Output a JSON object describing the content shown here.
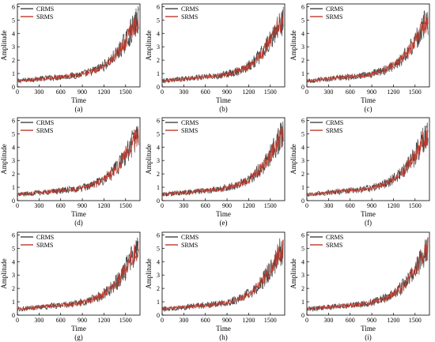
{
  "chart_data": [
    {
      "type": "line",
      "panel_label": "(a)",
      "xlabel": "Time",
      "ylabel": "Amplitude",
      "xlim": [
        0,
        1700
      ],
      "ylim": [
        0,
        6.2
      ],
      "xticks": [
        0,
        300,
        600,
        900,
        1200,
        1500
      ],
      "yticks": [
        0,
        1,
        2,
        3,
        4,
        5,
        6
      ],
      "legend": "top-left",
      "series": [
        {
          "name": "CRMS",
          "color": "#444444"
        },
        {
          "name": "SRMS",
          "color": "#c0392b"
        }
      ],
      "x": [
        0,
        100,
        200,
        300,
        400,
        500,
        600,
        700,
        800,
        900,
        1000,
        1100,
        1200,
        1300,
        1400,
        1500,
        1550,
        1600,
        1650,
        1680
      ],
      "values_trend": [
        0.45,
        0.5,
        0.55,
        0.6,
        0.65,
        0.7,
        0.75,
        0.8,
        0.85,
        0.95,
        1.1,
        1.3,
        1.6,
        2.0,
        2.6,
        3.4,
        3.9,
        4.4,
        4.8,
        5.0
      ]
    },
    {
      "type": "line",
      "panel_label": "(b)",
      "xlabel": "Time",
      "ylabel": "Amplitude",
      "xlim": [
        0,
        1700
      ],
      "ylim": [
        0,
        6.2
      ],
      "xticks": [
        0,
        300,
        600,
        900,
        1200,
        1500
      ],
      "yticks": [
        0,
        1,
        2,
        3,
        4,
        5,
        6
      ],
      "legend": "top-left",
      "series": [
        {
          "name": "CRMS",
          "color": "#444444"
        },
        {
          "name": "SRMS",
          "color": "#c0392b"
        }
      ],
      "x": [
        0,
        100,
        200,
        300,
        400,
        500,
        600,
        700,
        800,
        900,
        1000,
        1100,
        1200,
        1300,
        1400,
        1500,
        1550,
        1600,
        1650,
        1680
      ],
      "values_trend": [
        0.45,
        0.5,
        0.55,
        0.6,
        0.65,
        0.7,
        0.75,
        0.8,
        0.85,
        0.95,
        1.1,
        1.3,
        1.6,
        2.0,
        2.6,
        3.4,
        3.9,
        4.4,
        4.8,
        5.0
      ]
    },
    {
      "type": "line",
      "panel_label": "(c)",
      "xlabel": "Time",
      "ylabel": "Amplitude",
      "xlim": [
        0,
        1700
      ],
      "ylim": [
        0,
        6.2
      ],
      "xticks": [
        0,
        300,
        600,
        900,
        1200,
        1500
      ],
      "yticks": [
        0,
        1,
        2,
        3,
        4,
        5,
        6
      ],
      "legend": "top-left",
      "series": [
        {
          "name": "CRMS",
          "color": "#444444"
        },
        {
          "name": "SRMS",
          "color": "#c0392b"
        }
      ],
      "x": [
        0,
        100,
        200,
        300,
        400,
        500,
        600,
        700,
        800,
        900,
        1000,
        1100,
        1200,
        1300,
        1400,
        1500,
        1550,
        1600,
        1650,
        1680
      ],
      "values_trend": [
        0.45,
        0.5,
        0.55,
        0.6,
        0.65,
        0.7,
        0.75,
        0.8,
        0.85,
        0.95,
        1.1,
        1.3,
        1.6,
        2.0,
        2.6,
        3.4,
        3.9,
        4.4,
        4.8,
        5.0
      ]
    },
    {
      "type": "line",
      "panel_label": "(d)",
      "xlabel": "Time",
      "ylabel": "Amplitude",
      "xlim": [
        0,
        1700
      ],
      "ylim": [
        0,
        6.2
      ],
      "xticks": [
        0,
        300,
        600,
        900,
        1200,
        1500
      ],
      "yticks": [
        0,
        1,
        2,
        3,
        4,
        5,
        6
      ],
      "legend": "top-left",
      "series": [
        {
          "name": "CRMS",
          "color": "#444444"
        },
        {
          "name": "SRMS",
          "color": "#c0392b"
        }
      ],
      "x": [
        0,
        100,
        200,
        300,
        400,
        500,
        600,
        700,
        800,
        900,
        1000,
        1100,
        1200,
        1300,
        1400,
        1500,
        1550,
        1600,
        1650,
        1680
      ],
      "values_trend": [
        0.45,
        0.5,
        0.55,
        0.6,
        0.65,
        0.7,
        0.75,
        0.8,
        0.85,
        0.95,
        1.1,
        1.3,
        1.6,
        2.0,
        2.6,
        3.4,
        3.9,
        4.4,
        4.8,
        5.0
      ]
    },
    {
      "type": "line",
      "panel_label": "(e)",
      "xlabel": "Time",
      "ylabel": "Amplitude",
      "xlim": [
        0,
        1700
      ],
      "ylim": [
        0,
        6.2
      ],
      "xticks": [
        0,
        300,
        600,
        900,
        1200,
        1500
      ],
      "yticks": [
        0,
        1,
        2,
        3,
        4,
        5,
        6
      ],
      "legend": "top-left",
      "series": [
        {
          "name": "CRMS",
          "color": "#444444"
        },
        {
          "name": "SRMS",
          "color": "#c0392b"
        }
      ],
      "x": [
        0,
        100,
        200,
        300,
        400,
        500,
        600,
        700,
        800,
        900,
        1000,
        1100,
        1200,
        1300,
        1400,
        1500,
        1550,
        1600,
        1650,
        1680
      ],
      "values_trend": [
        0.45,
        0.5,
        0.55,
        0.6,
        0.65,
        0.7,
        0.75,
        0.8,
        0.85,
        0.95,
        1.1,
        1.3,
        1.6,
        2.0,
        2.6,
        3.4,
        3.9,
        4.4,
        4.8,
        5.0
      ]
    },
    {
      "type": "line",
      "panel_label": "(f)",
      "xlabel": "Time",
      "ylabel": "Amplitude",
      "xlim": [
        0,
        1700
      ],
      "ylim": [
        0,
        6.2
      ],
      "xticks": [
        0,
        300,
        600,
        900,
        1200,
        1500
      ],
      "yticks": [
        0,
        1,
        2,
        3,
        4,
        5,
        6
      ],
      "legend": "top-left",
      "series": [
        {
          "name": "CRMS",
          "color": "#444444"
        },
        {
          "name": "SRMS",
          "color": "#c0392b"
        }
      ],
      "x": [
        0,
        100,
        200,
        300,
        400,
        500,
        600,
        700,
        800,
        900,
        1000,
        1100,
        1200,
        1300,
        1400,
        1500,
        1550,
        1600,
        1650,
        1680
      ],
      "values_trend": [
        0.45,
        0.5,
        0.55,
        0.6,
        0.65,
        0.7,
        0.75,
        0.8,
        0.85,
        0.95,
        1.1,
        1.3,
        1.6,
        2.0,
        2.6,
        3.4,
        3.9,
        4.4,
        4.8,
        5.0
      ]
    },
    {
      "type": "line",
      "panel_label": "(g)",
      "xlabel": "Time",
      "ylabel": "Amplitude",
      "xlim": [
        0,
        1700
      ],
      "ylim": [
        0,
        6.2
      ],
      "xticks": [
        0,
        300,
        600,
        900,
        1200,
        1500
      ],
      "yticks": [
        0,
        1,
        2,
        3,
        4,
        5,
        6
      ],
      "legend": "top-left",
      "series": [
        {
          "name": "CRMS",
          "color": "#444444"
        },
        {
          "name": "SRMS",
          "color": "#c0392b"
        }
      ],
      "x": [
        0,
        100,
        200,
        300,
        400,
        500,
        600,
        700,
        800,
        900,
        1000,
        1100,
        1200,
        1300,
        1400,
        1500,
        1550,
        1600,
        1650,
        1680
      ],
      "values_trend": [
        0.45,
        0.5,
        0.55,
        0.6,
        0.65,
        0.7,
        0.75,
        0.8,
        0.85,
        0.95,
        1.1,
        1.3,
        1.6,
        2.0,
        2.6,
        3.4,
        3.9,
        4.4,
        4.8,
        5.0
      ]
    },
    {
      "type": "line",
      "panel_label": "(h)",
      "xlabel": "Time",
      "ylabel": "Amplitude",
      "xlim": [
        0,
        1700
      ],
      "ylim": [
        0,
        6.2
      ],
      "xticks": [
        0,
        300,
        600,
        900,
        1200,
        1500
      ],
      "yticks": [
        0,
        1,
        2,
        3,
        4,
        5,
        6
      ],
      "legend": "top-left",
      "series": [
        {
          "name": "CRMS",
          "color": "#444444"
        },
        {
          "name": "SRMS",
          "color": "#c0392b"
        }
      ],
      "x": [
        0,
        100,
        200,
        300,
        400,
        500,
        600,
        700,
        800,
        900,
        1000,
        1100,
        1200,
        1300,
        1400,
        1500,
        1550,
        1600,
        1650,
        1680
      ],
      "values_trend": [
        0.45,
        0.5,
        0.55,
        0.6,
        0.65,
        0.7,
        0.75,
        0.8,
        0.85,
        0.95,
        1.1,
        1.3,
        1.6,
        2.0,
        2.6,
        3.4,
        3.9,
        4.4,
        4.8,
        5.0
      ]
    },
    {
      "type": "line",
      "panel_label": "(i)",
      "xlabel": "Time",
      "ylabel": "Amplitude",
      "xlim": [
        0,
        1700
      ],
      "ylim": [
        0,
        6.2
      ],
      "xticks": [
        0,
        300,
        600,
        900,
        1200,
        1500
      ],
      "yticks": [
        0,
        1,
        2,
        3,
        4,
        5,
        6
      ],
      "legend": "top-left",
      "series": [
        {
          "name": "CRMS",
          "color": "#444444"
        },
        {
          "name": "SRMS",
          "color": "#c0392b"
        }
      ],
      "x": [
        0,
        100,
        200,
        300,
        400,
        500,
        600,
        700,
        800,
        900,
        1000,
        1100,
        1200,
        1300,
        1400,
        1500,
        1550,
        1600,
        1650,
        1680
      ],
      "values_trend": [
        0.45,
        0.5,
        0.55,
        0.6,
        0.65,
        0.7,
        0.75,
        0.8,
        0.85,
        0.95,
        1.1,
        1.3,
        1.6,
        2.0,
        2.6,
        3.4,
        3.9,
        4.4,
        4.8,
        5.0
      ]
    }
  ]
}
